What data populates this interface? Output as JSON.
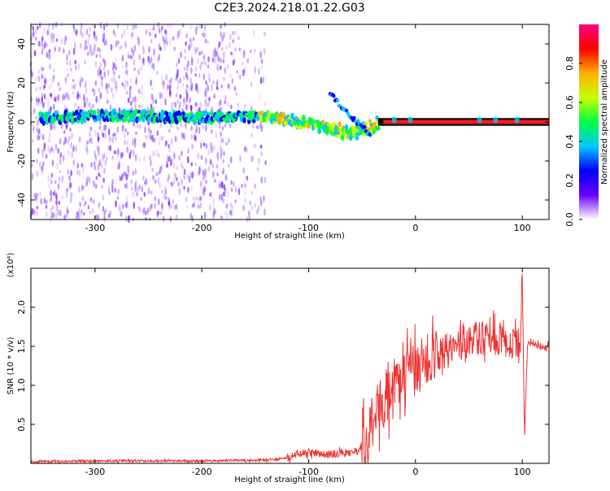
{
  "title": "C2E3.2024.218.01.22.G03",
  "chart_data": [
    {
      "type": "heatmap",
      "xlabel": "Height of straight line (km)",
      "ylabel": "Frequency (Hz)",
      "xlim": [
        -360,
        125
      ],
      "ylim": [
        -50,
        50
      ],
      "xticks": [
        -300,
        -200,
        -100,
        0,
        100
      ],
      "yticks": [
        40,
        20,
        0,
        -20,
        -40
      ],
      "colorbar": {
        "label": "Normalized spectral amplitude",
        "range": [
          0.0,
          1.0
        ],
        "ticks": [
          "0.0",
          "0.2",
          "0.4",
          "0.6",
          "0.8"
        ],
        "colormap": [
          "#ffffff",
          "#6a00ff",
          "#0000ff",
          "#00c8ff",
          "#00ff40",
          "#c8ff00",
          "#ffb000",
          "#ff0000",
          "#ff0080"
        ]
      },
      "trace": {
        "height": [
          -350,
          -300,
          -250,
          -200,
          -150,
          -130,
          -110,
          -90,
          -75,
          -60,
          -45,
          -30,
          -15,
          0,
          25,
          50,
          75,
          100,
          120
        ],
        "frequency": [
          2,
          3,
          3,
          2,
          3,
          2,
          0,
          -2,
          -4,
          -6,
          -3,
          0,
          1,
          1,
          0,
          0,
          0,
          0,
          0
        ]
      }
    },
    {
      "type": "line",
      "xlabel": "Height of straight line (km)",
      "ylabel": "SNR (10 * v/v)",
      "yunit": "(x10⁴)",
      "xlim": [
        -360,
        125
      ],
      "ylim": [
        0,
        2.5
      ],
      "xticks": [
        -300,
        -200,
        -100,
        0,
        100
      ],
      "yticks": [
        0.5,
        1.0,
        1.5,
        2.0
      ],
      "series": [
        {
          "color": "#ee3333",
          "x": [
            -360,
            -300,
            -250,
            -200,
            -160,
            -130,
            -120,
            -110,
            -100,
            -90,
            -80,
            -70,
            -60,
            -50,
            -45,
            -40,
            -35,
            -30,
            -25,
            -20,
            -15,
            -10,
            -5,
            0,
            10,
            20,
            30,
            40,
            50,
            60,
            70,
            80,
            90,
            95,
            98,
            100,
            102,
            105,
            110,
            125
          ],
          "y": [
            0.02,
            0.03,
            0.03,
            0.03,
            0.04,
            0.05,
            0.08,
            0.12,
            0.14,
            0.12,
            0.12,
            0.13,
            0.14,
            0.2,
            0.35,
            0.45,
            0.7,
            0.8,
            0.9,
            1.0,
            1.05,
            1.1,
            1.15,
            1.2,
            1.3,
            1.4,
            1.45,
            1.55,
            1.57,
            1.6,
            1.58,
            1.6,
            1.55,
            1.55,
            1.3,
            2.45,
            0.35,
            1.55,
            1.52,
            1.5
          ]
        }
      ]
    }
  ]
}
